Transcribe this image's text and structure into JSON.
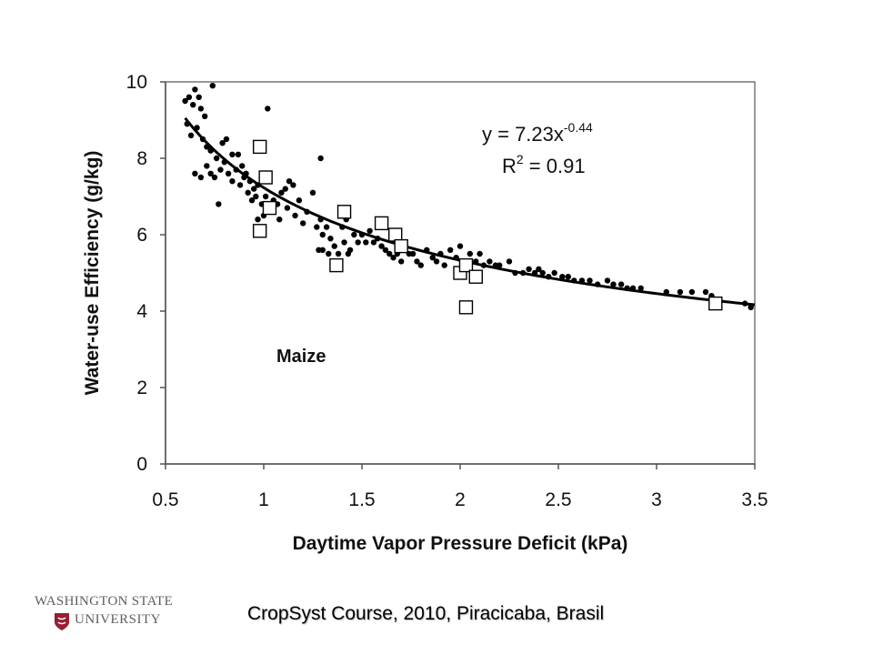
{
  "chart_data": {
    "type": "scatter",
    "xlabel": "Daytime Vapor Pressure Deficit (kPa)",
    "ylabel": "Water-use Efficiency (g/kg)",
    "xlim": [
      0.5,
      3.5
    ],
    "ylim": [
      0,
      10
    ],
    "xticks": [
      0.5,
      1,
      1.5,
      2,
      2.5,
      3,
      3.5
    ],
    "xtick_labels": [
      "0.5",
      "1",
      "1.5",
      "2",
      "2.5",
      "3",
      "3.5"
    ],
    "yticks": [
      0,
      2,
      4,
      6,
      8,
      10
    ],
    "ytick_labels": [
      "0",
      "2",
      "4",
      "6",
      "8",
      "10"
    ],
    "grid": false,
    "annotations": {
      "equation_base": "y = 7.23x",
      "equation_exponent": "-0.44",
      "r2_prefix": "R",
      "r2_sup": "2",
      "r2_suffix": " = 0.91",
      "crop": "Maize"
    },
    "fit": {
      "type": "power",
      "a": 7.23,
      "b": -0.44,
      "x_range": [
        0.6,
        3.5
      ]
    },
    "series": [
      {
        "marker": "filled-circle",
        "points": [
          [
            0.6,
            9.5
          ],
          [
            0.62,
            9.6
          ],
          [
            0.64,
            9.4
          ],
          [
            0.65,
            9.8
          ],
          [
            0.67,
            9.6
          ],
          [
            0.68,
            9.3
          ],
          [
            0.7,
            9.1
          ],
          [
            0.74,
            9.9
          ],
          [
            0.61,
            8.9
          ],
          [
            0.63,
            8.6
          ],
          [
            0.66,
            8.8
          ],
          [
            0.69,
            8.5
          ],
          [
            0.71,
            8.3
          ],
          [
            0.73,
            8.2
          ],
          [
            0.76,
            8.0
          ],
          [
            0.79,
            8.4
          ],
          [
            0.81,
            8.5
          ],
          [
            0.84,
            8.1
          ],
          [
            0.87,
            8.1
          ],
          [
            0.89,
            7.8
          ],
          [
            0.91,
            7.6
          ],
          [
            0.93,
            7.4
          ],
          [
            0.95,
            7.2
          ],
          [
            0.97,
            7.3
          ],
          [
            0.65,
            7.6
          ],
          [
            0.68,
            7.5
          ],
          [
            0.71,
            7.8
          ],
          [
            0.73,
            7.6
          ],
          [
            0.75,
            7.5
          ],
          [
            0.78,
            7.7
          ],
          [
            0.8,
            7.9
          ],
          [
            0.82,
            7.6
          ],
          [
            0.84,
            7.4
          ],
          [
            0.86,
            7.7
          ],
          [
            0.88,
            7.3
          ],
          [
            0.9,
            7.5
          ],
          [
            0.92,
            7.1
          ],
          [
            0.94,
            6.9
          ],
          [
            0.96,
            7.0
          ],
          [
            0.99,
            6.8
          ],
          [
            1.01,
            7.0
          ],
          [
            1.03,
            6.7
          ],
          [
            1.05,
            6.9
          ],
          [
            1.07,
            6.8
          ],
          [
            1.09,
            7.1
          ],
          [
            1.11,
            7.2
          ],
          [
            1.13,
            7.4
          ],
          [
            1.15,
            7.3
          ],
          [
            1.02,
            9.3
          ],
          [
            0.77,
            6.8
          ],
          [
            0.97,
            6.4
          ],
          [
            1.0,
            6.5
          ],
          [
            1.04,
            6.6
          ],
          [
            1.08,
            6.4
          ],
          [
            1.12,
            6.7
          ],
          [
            1.16,
            6.5
          ],
          [
            1.18,
            6.9
          ],
          [
            1.2,
            6.3
          ],
          [
            1.22,
            6.6
          ],
          [
            1.25,
            7.1
          ],
          [
            1.27,
            6.2
          ],
          [
            1.29,
            6.4
          ],
          [
            1.3,
            6.0
          ],
          [
            1.32,
            6.2
          ],
          [
            1.34,
            5.9
          ],
          [
            1.29,
            8.0
          ],
          [
            1.28,
            5.6
          ],
          [
            1.3,
            5.6
          ],
          [
            1.33,
            5.5
          ],
          [
            1.36,
            5.7
          ],
          [
            1.38,
            5.5
          ],
          [
            1.4,
            6.2
          ],
          [
            1.41,
            5.8
          ],
          [
            1.42,
            6.4
          ],
          [
            1.43,
            5.5
          ],
          [
            1.44,
            5.6
          ],
          [
            1.46,
            6.0
          ],
          [
            1.48,
            5.8
          ],
          [
            1.5,
            6.0
          ],
          [
            1.52,
            5.8
          ],
          [
            1.54,
            6.1
          ],
          [
            1.56,
            5.8
          ],
          [
            1.58,
            5.9
          ],
          [
            1.6,
            5.7
          ],
          [
            1.62,
            5.6
          ],
          [
            1.64,
            5.5
          ],
          [
            1.66,
            5.4
          ],
          [
            1.68,
            5.5
          ],
          [
            1.7,
            5.3
          ],
          [
            1.72,
            5.6
          ],
          [
            1.74,
            5.5
          ],
          [
            1.76,
            5.5
          ],
          [
            1.78,
            5.3
          ],
          [
            1.8,
            5.2
          ],
          [
            1.83,
            5.6
          ],
          [
            1.86,
            5.4
          ],
          [
            1.88,
            5.3
          ],
          [
            1.9,
            5.5
          ],
          [
            1.92,
            5.2
          ],
          [
            1.95,
            5.6
          ],
          [
            1.98,
            5.4
          ],
          [
            2.0,
            5.7
          ],
          [
            2.02,
            5.3
          ],
          [
            2.05,
            5.5
          ],
          [
            2.08,
            5.3
          ],
          [
            2.1,
            5.5
          ],
          [
            2.12,
            5.2
          ],
          [
            2.15,
            5.3
          ],
          [
            2.18,
            5.2
          ],
          [
            2.2,
            5.2
          ],
          [
            2.25,
            5.3
          ],
          [
            2.28,
            5.0
          ],
          [
            2.32,
            5.0
          ],
          [
            2.35,
            5.1
          ],
          [
            2.38,
            5.0
          ],
          [
            2.4,
            5.1
          ],
          [
            2.42,
            5.0
          ],
          [
            2.45,
            4.9
          ],
          [
            2.48,
            5.0
          ],
          [
            2.52,
            4.9
          ],
          [
            2.55,
            4.9
          ],
          [
            2.58,
            4.8
          ],
          [
            2.62,
            4.8
          ],
          [
            2.66,
            4.8
          ],
          [
            2.7,
            4.7
          ],
          [
            2.75,
            4.8
          ],
          [
            2.78,
            4.7
          ],
          [
            2.82,
            4.7
          ],
          [
            2.85,
            4.6
          ],
          [
            2.88,
            4.6
          ],
          [
            2.92,
            4.6
          ],
          [
            3.05,
            4.5
          ],
          [
            3.12,
            4.5
          ],
          [
            3.18,
            4.5
          ],
          [
            3.25,
            4.5
          ],
          [
            3.28,
            4.4
          ],
          [
            3.45,
            4.2
          ],
          [
            3.48,
            4.1
          ]
        ]
      },
      {
        "marker": "open-square",
        "points": [
          [
            0.98,
            8.3
          ],
          [
            1.01,
            7.5
          ],
          [
            1.03,
            6.7
          ],
          [
            0.98,
            6.1
          ],
          [
            1.41,
            6.6
          ],
          [
            1.37,
            5.2
          ],
          [
            1.6,
            6.3
          ],
          [
            1.67,
            6.0
          ],
          [
            1.7,
            5.7
          ],
          [
            2.0,
            5.0
          ],
          [
            2.03,
            5.2
          ],
          [
            2.08,
            4.9
          ],
          [
            2.03,
            4.1
          ],
          [
            3.3,
            4.2
          ]
        ]
      }
    ]
  },
  "footer": {
    "caption": "CropSyst Course, 2010, Piracicaba, Brasil",
    "logo_line1": "WASHINGTON STATE",
    "logo_line2": "UNIVERSITY",
    "logo_text_color": "#5e5e5e",
    "seal_color": "#981e32"
  }
}
